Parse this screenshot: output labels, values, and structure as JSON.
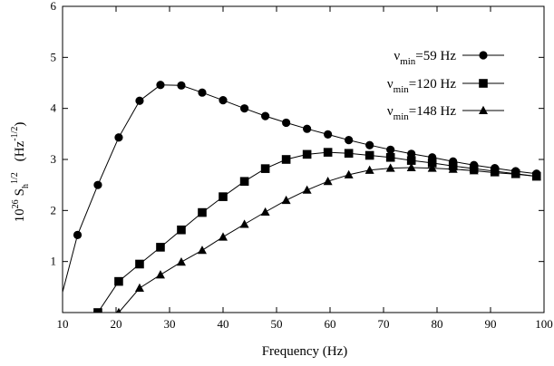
{
  "chart_data": {
    "type": "line",
    "xlabel": "Frequency (Hz)",
    "ylabel_parts": {
      "prefix": "10",
      "exp": "26",
      "s": "S",
      "sub": "h",
      "sup": "1/2",
      "unit_open": "(Hz",
      "unit_exp": "-1/2",
      "unit_close": ")"
    },
    "xlim": [
      10,
      100
    ],
    "ylim": [
      0,
      6
    ],
    "xticks": [
      10,
      20,
      30,
      40,
      50,
      60,
      70,
      80,
      90,
      100
    ],
    "yticks": [
      1,
      2,
      3,
      4,
      5,
      6
    ],
    "grid": false,
    "legend_position": "top-right",
    "series": [
      {
        "name": "ν_min=59 Hz",
        "legend": {
          "nu": "ν",
          "sub": "min",
          "rest": "=59 Hz"
        },
        "marker": "circle",
        "x": [
          10,
          12.8,
          16.6,
          20.5,
          24.4,
          28.3,
          32.2,
          36.1,
          40.0,
          44.0,
          47.9,
          51.8,
          55.7,
          59.6,
          63.5,
          67.4,
          71.3,
          75.2,
          79.1,
          83.0,
          86.9,
          90.8,
          94.7,
          98.6
        ],
        "y": [
          0.4,
          1.52,
          2.5,
          3.43,
          4.15,
          4.46,
          4.45,
          4.31,
          4.16,
          4.0,
          3.85,
          3.72,
          3.6,
          3.49,
          3.38,
          3.28,
          3.19,
          3.11,
          3.04,
          2.96,
          2.89,
          2.83,
          2.77,
          2.72
        ]
      },
      {
        "name": "ν_min=120 Hz",
        "legend": {
          "nu": "ν",
          "sub": "min",
          "rest": "=120 Hz"
        },
        "marker": "square",
        "x": [
          16.6,
          20.5,
          24.4,
          28.3,
          32.2,
          36.1,
          40.0,
          44.0,
          47.9,
          51.8,
          55.7,
          59.6,
          63.5,
          67.4,
          71.3,
          75.2,
          79.1,
          83.0,
          86.9,
          90.8,
          94.7,
          98.6
        ],
        "y": [
          0.0,
          0.61,
          0.95,
          1.28,
          1.62,
          1.96,
          2.27,
          2.57,
          2.82,
          3.0,
          3.1,
          3.14,
          3.12,
          3.08,
          3.04,
          2.98,
          2.93,
          2.87,
          2.82,
          2.77,
          2.72,
          2.67
        ]
      },
      {
        "name": "ν_min=148 Hz",
        "legend": {
          "nu": "ν",
          "sub": "min",
          "rest": "=148 Hz"
        },
        "marker": "triangle",
        "x": [
          20.5,
          24.4,
          28.3,
          32.2,
          36.1,
          40.0,
          44.0,
          47.9,
          51.8,
          55.7,
          59.6,
          63.5,
          67.4,
          71.3,
          75.2,
          79.1,
          83.0,
          86.9,
          90.8,
          94.7,
          98.6
        ],
        "y": [
          0.0,
          0.48,
          0.74,
          0.99,
          1.22,
          1.48,
          1.73,
          1.97,
          2.2,
          2.4,
          2.57,
          2.7,
          2.79,
          2.83,
          2.84,
          2.83,
          2.81,
          2.78,
          2.74,
          2.71,
          2.67
        ]
      }
    ]
  }
}
